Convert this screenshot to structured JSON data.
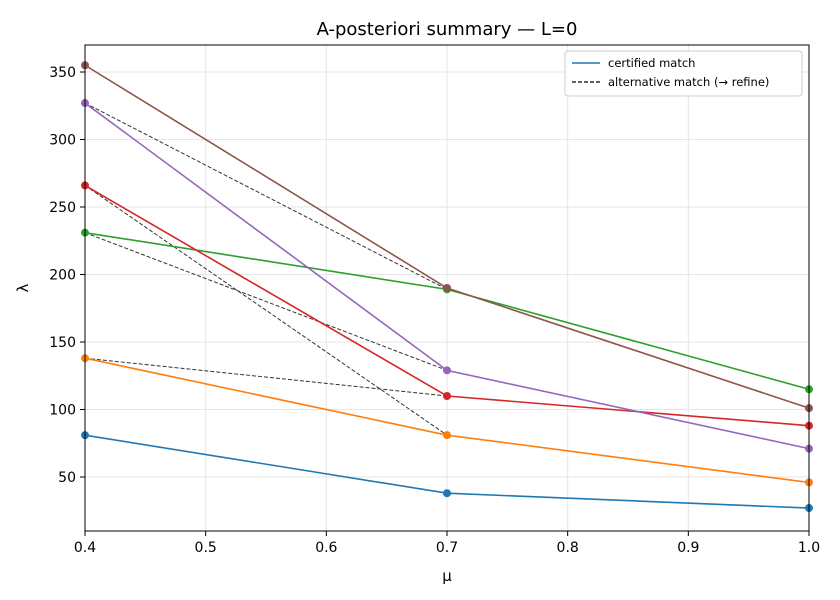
{
  "chart_data": {
    "type": "line",
    "title": "A-posteriori summary — L=0",
    "xlabel": "μ",
    "ylabel": "λ",
    "xlim": [
      0.4,
      1.0
    ],
    "ylim": [
      10,
      370
    ],
    "xticks": [
      "0.4",
      "0.5",
      "0.6",
      "0.7",
      "0.8",
      "0.9",
      "1.0"
    ],
    "yticks": [
      "50",
      "100",
      "150",
      "200",
      "250",
      "300",
      "350"
    ],
    "grid": true,
    "legend_position": "top-right",
    "legend": [
      {
        "label": "certified match",
        "style": "solid",
        "color": "#1f77b4"
      },
      {
        "label": "alternative match (→ refine)",
        "style": "dashed",
        "color": "#000000"
      }
    ],
    "x": [
      0.4,
      0.7,
      1.0
    ],
    "series": [
      {
        "values": [
          81,
          38,
          27
        ],
        "color": "#1f77b4"
      },
      {
        "values": [
          138,
          81,
          46
        ],
        "color": "#ff7f0e"
      },
      {
        "values": [
          231,
          189,
          115
        ],
        "color": "#2ca02c"
      },
      {
        "values": [
          266,
          110,
          88
        ],
        "color": "#d62728"
      },
      {
        "values": [
          327,
          129,
          71
        ],
        "color": "#9467bd"
      },
      {
        "values": [
          355,
          190,
          101
        ],
        "color": "#8c564b"
      }
    ],
    "alternatives": [
      {
        "x": [
          0.4,
          0.7
        ],
        "y": [
          138,
          110
        ]
      },
      {
        "x": [
          0.4,
          0.7
        ],
        "y": [
          231,
          129
        ]
      },
      {
        "x": [
          0.4,
          0.7
        ],
        "y": [
          266,
          81
        ]
      },
      {
        "x": [
          0.4,
          0.7
        ],
        "y": [
          327,
          189
        ]
      }
    ]
  }
}
